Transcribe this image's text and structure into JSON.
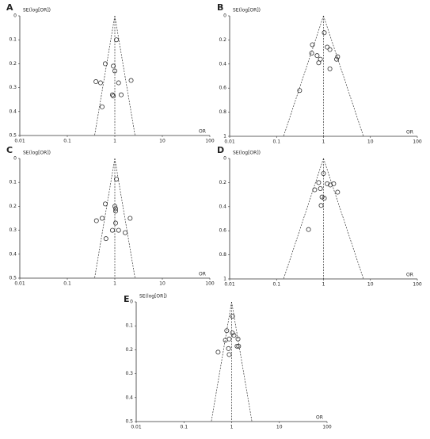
{
  "chart_data": [
    {
      "type": "scatter",
      "title": "A",
      "x_label": "OR",
      "y_label": "SE(log[OR])",
      "log_x": true,
      "y_inverted": true,
      "color": "#333333",
      "x": [
        1.08,
        0.63,
        0.93,
        1.0,
        0.4,
        0.5,
        1.2,
        2.2,
        0.89,
        0.93,
        1.36,
        0.54
      ],
      "values": [
        0.1,
        0.2,
        0.21,
        0.23,
        0.275,
        0.28,
        0.28,
        0.27,
        0.33,
        0.335,
        0.33,
        0.38
      ],
      "xlim": [
        0.01,
        100
      ],
      "ylim": [
        0,
        0.5
      ],
      "xticks": [
        0.01,
        0.1,
        1,
        10,
        100
      ],
      "yticks": [
        0,
        0.1,
        0.2,
        0.3,
        0.4,
        0.5
      ]
    },
    {
      "type": "scatter",
      "title": "B",
      "x_label": "OR",
      "y_label": "SE(log[OR])",
      "log_x": true,
      "y_inverted": true,
      "color": "#333333",
      "x": [
        1.04,
        1.2,
        1.37,
        0.58,
        0.56,
        0.73,
        0.86,
        0.79,
        2.0,
        1.9,
        1.37,
        0.31
      ],
      "values": [
        0.14,
        0.26,
        0.28,
        0.24,
        0.31,
        0.33,
        0.36,
        0.39,
        0.34,
        0.36,
        0.44,
        0.62
      ],
      "xlim": [
        0.01,
        100
      ],
      "ylim": [
        0,
        1
      ],
      "xticks": [
        0.01,
        0.1,
        1,
        10,
        100
      ],
      "yticks": [
        0,
        0.2,
        0.4,
        0.6,
        0.8,
        1
      ]
    },
    {
      "type": "scatter",
      "title": "C",
      "x_label": "OR",
      "y_label": "SE(log[OR])",
      "log_x": true,
      "y_inverted": true,
      "color": "#333333",
      "x": [
        1.08,
        0.63,
        1.0,
        1.04,
        1.04,
        0.41,
        0.54,
        2.1,
        1.04,
        0.89,
        1.2,
        1.65,
        0.65
      ],
      "values": [
        0.086,
        0.19,
        0.2,
        0.21,
        0.22,
        0.26,
        0.25,
        0.25,
        0.27,
        0.3,
        0.3,
        0.31,
        0.335
      ],
      "xlim": [
        0.01,
        100
      ],
      "ylim": [
        0,
        0.5
      ],
      "xticks": [
        0.01,
        0.1,
        1,
        10,
        100
      ],
      "yticks": [
        0,
        0.1,
        0.2,
        0.3,
        0.4,
        0.5
      ]
    },
    {
      "type": "scatter",
      "title": "D",
      "x_label": "OR",
      "y_label": "SE(log[OR])",
      "log_x": true,
      "y_inverted": true,
      "color": "#333333",
      "x": [
        1.0,
        1.2,
        1.4,
        1.65,
        0.79,
        0.65,
        0.86,
        2.0,
        0.93,
        1.04,
        0.89,
        0.48
      ],
      "values": [
        0.125,
        0.21,
        0.22,
        0.21,
        0.2,
        0.26,
        0.25,
        0.28,
        0.32,
        0.33,
        0.39,
        0.59
      ],
      "xlim": [
        0.01,
        100
      ],
      "ylim": [
        0,
        1
      ],
      "xticks": [
        0.01,
        0.1,
        1,
        10,
        100
      ],
      "yticks": [
        0,
        0.2,
        0.4,
        0.6,
        0.8,
        1
      ]
    },
    {
      "type": "scatter",
      "title": "E",
      "x_label": "OR",
      "y_label": "SE(log[OR])",
      "log_x": true,
      "y_inverted": true,
      "color": "#333333",
      "x": [
        1.04,
        0.79,
        1.04,
        1.12,
        0.89,
        0.74,
        1.36,
        1.3,
        1.4,
        0.86,
        0.52,
        0.89
      ],
      "values": [
        0.06,
        0.12,
        0.13,
        0.14,
        0.155,
        0.16,
        0.155,
        0.185,
        0.185,
        0.195,
        0.21,
        0.22
      ],
      "xlim": [
        0.01,
        100
      ],
      "ylim": [
        0,
        0.5
      ],
      "xticks": [
        0.01,
        0.1,
        1,
        10,
        100
      ],
      "yticks": [
        0,
        0.1,
        0.2,
        0.3,
        0.4,
        0.5
      ]
    }
  ]
}
